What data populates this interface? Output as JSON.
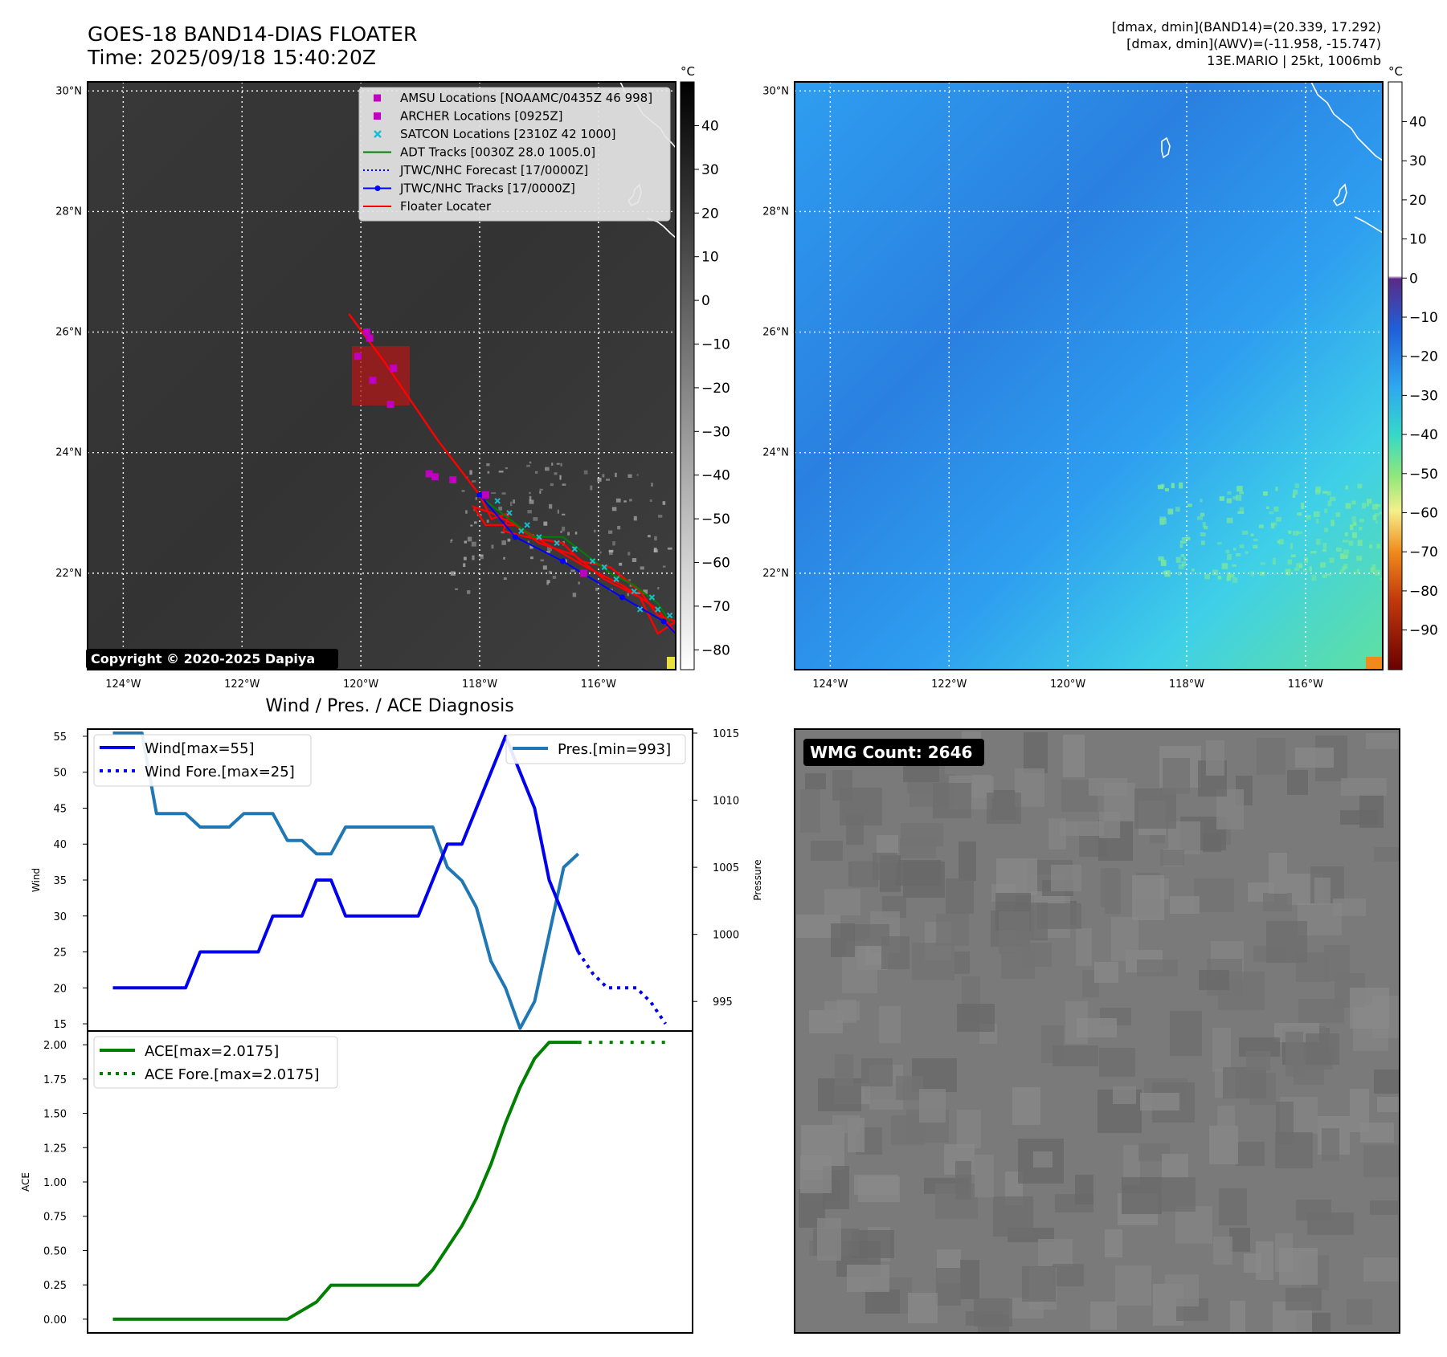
{
  "header": {
    "title_line1": "GOES-18 BAND14-DIAS FLOATER",
    "title_line2": "Time: 2025/09/18 15:40:20Z",
    "stats_line1": "[dmax, dmin](BAND14)=(20.339, 17.292)",
    "stats_line2": "[dmax, dmin](AWV)=(-11.958, -15.747)",
    "stats_line3": "13E.MARIO | 25kt, 1006mb"
  },
  "colors": {
    "amsu": "#c000c0",
    "archer": "#c000c0",
    "satcon": "#17becf",
    "adt": "#008000",
    "jtwc": "#0000ff",
    "floater": "#ff0000",
    "wind": "#0000ee",
    "pressure": "#1f77b4",
    "ace": "#008000",
    "ir_background": "#3a3a3a",
    "awv_background": "#2f8fe8",
    "wmg_background": "#7a7a7a"
  },
  "map_axes": {
    "lat_labels": [
      "30°N",
      "28°N",
      "26°N",
      "24°N",
      "22°N"
    ],
    "lon_labels": [
      "124°W",
      "122°W",
      "120°W",
      "118°W",
      "116°W"
    ],
    "lat_range": [
      20.4,
      30.15
    ],
    "lon_range": [
      -124.6,
      -114.7
    ]
  },
  "ir_panel": {
    "copyright": "Copyright © 2020-2025 Dapiya",
    "colorbar_unit": "°C",
    "colorbar_ticks": [
      "40",
      "30",
      "20",
      "10",
      "0",
      "−10",
      "−20",
      "−30",
      "−40",
      "−50",
      "−60",
      "−70",
      "−80"
    ],
    "legend": [
      {
        "label": "AMSU Locations [NOAAMC/0435Z 46 998]",
        "marker": "square",
        "color_key": "amsu"
      },
      {
        "label": "ARCHER Locations [0925Z]",
        "marker": "square",
        "color_key": "archer"
      },
      {
        "label": "SATCON Locations [2310Z 42 1000]",
        "marker": "x",
        "color_key": "satcon"
      },
      {
        "label": "ADT Tracks [0030Z 28.0 1005.0]",
        "marker": "line",
        "color_key": "adt"
      },
      {
        "label": "JTWC/NHC Forecast [17/0000Z]",
        "marker": "dotted",
        "color_key": "jtwc"
      },
      {
        "label": "JTWC/NHC Tracks [17/0000Z]",
        "marker": "line-dot",
        "color_key": "jtwc"
      },
      {
        "label": "Floater Locater",
        "marker": "line",
        "color_key": "floater"
      }
    ]
  },
  "awv_panel": {
    "colorbar_unit": "°C",
    "colorbar_ticks": [
      "40",
      "30",
      "20",
      "10",
      "0",
      "−10",
      "−20",
      "−30",
      "−40",
      "−50",
      "−60",
      "−70",
      "−80",
      "−90"
    ]
  },
  "wmg_panel": {
    "badge": "WMG Count: 2646"
  },
  "chart_data": [
    {
      "type": "line",
      "title": "Wind / Pres. / ACE Diagnosis",
      "ylabel": "Wind",
      "ylabel_right": "Pressure",
      "ylim": [
        14,
        56
      ],
      "ylim_right": [
        992.8,
        1015.3
      ],
      "yticks": [
        "55",
        "50",
        "45",
        "40",
        "35",
        "30",
        "25",
        "20",
        "15"
      ],
      "yticks_right": [
        "1015",
        "1010",
        "1005",
        "1000",
        "995"
      ],
      "series": [
        {
          "name": "Wind[max=55]",
          "x": [
            0,
            1,
            2,
            3,
            4,
            5,
            6,
            7,
            8,
            9,
            10,
            11,
            12,
            13,
            14,
            15,
            16,
            17,
            18,
            19,
            20,
            21,
            22,
            23,
            24,
            25,
            26,
            27,
            28,
            29,
            30,
            31,
            32
          ],
          "values": [
            20,
            20,
            20,
            20,
            20,
            20,
            25,
            25,
            25,
            25,
            25,
            30,
            30,
            30,
            35,
            35,
            30,
            30,
            30,
            30,
            30,
            30,
            35,
            40,
            40,
            45,
            50,
            55,
            50,
            45,
            35,
            30,
            25
          ]
        },
        {
          "name": "Wind Fore.[max=25]",
          "x": [
            32,
            33,
            34,
            35,
            36,
            37,
            38
          ],
          "values": [
            25,
            22,
            20,
            20,
            20,
            18,
            15
          ]
        },
        {
          "name": "Pres.[min=993]",
          "x": [
            0,
            1,
            2,
            3,
            4,
            5,
            6,
            7,
            8,
            9,
            10,
            11,
            12,
            13,
            14,
            15,
            16,
            17,
            18,
            19,
            20,
            21,
            22,
            23,
            24,
            25,
            26,
            27,
            28,
            29,
            30,
            31,
            32
          ],
          "values": [
            1015,
            1015,
            1015,
            1009,
            1009,
            1009,
            1008,
            1008,
            1008,
            1009,
            1009,
            1009,
            1007,
            1007,
            1006,
            1006,
            1008,
            1008,
            1008,
            1008,
            1008,
            1008,
            1008,
            1005,
            1004,
            1002,
            998,
            996,
            993,
            995,
            1000,
            1005,
            1006
          ]
        }
      ]
    },
    {
      "type": "line",
      "ylabel": "ACE",
      "ylim": [
        -0.1,
        2.1
      ],
      "yticks": [
        "2.00",
        "1.75",
        "1.50",
        "1.25",
        "1.00",
        "0.75",
        "0.50",
        "0.25",
        "0.00"
      ],
      "series": [
        {
          "name": "ACE[max=2.0175]",
          "x": [
            0,
            1,
            2,
            3,
            4,
            5,
            6,
            7,
            8,
            9,
            10,
            11,
            12,
            13,
            14,
            15,
            16,
            17,
            18,
            19,
            20,
            21,
            22,
            23,
            24,
            25,
            26,
            27,
            28,
            29,
            30,
            31,
            32
          ],
          "values": [
            0,
            0,
            0,
            0,
            0,
            0,
            0,
            0,
            0,
            0,
            0,
            0,
            0,
            0.0625,
            0.125,
            0.2475,
            0.2475,
            0.2475,
            0.2475,
            0.2475,
            0.2475,
            0.2475,
            0.36,
            0.52,
            0.68,
            0.88,
            1.13,
            1.43,
            1.69,
            1.9,
            2.0175,
            2.0175,
            2.0175
          ]
        },
        {
          "name": "ACE Fore.[max=2.0175]",
          "x": [
            32,
            33,
            34,
            35,
            36,
            37,
            38
          ],
          "values": [
            2.0175,
            2.0175,
            2.0175,
            2.0175,
            2.0175,
            2.0175,
            2.0175
          ]
        }
      ]
    }
  ]
}
